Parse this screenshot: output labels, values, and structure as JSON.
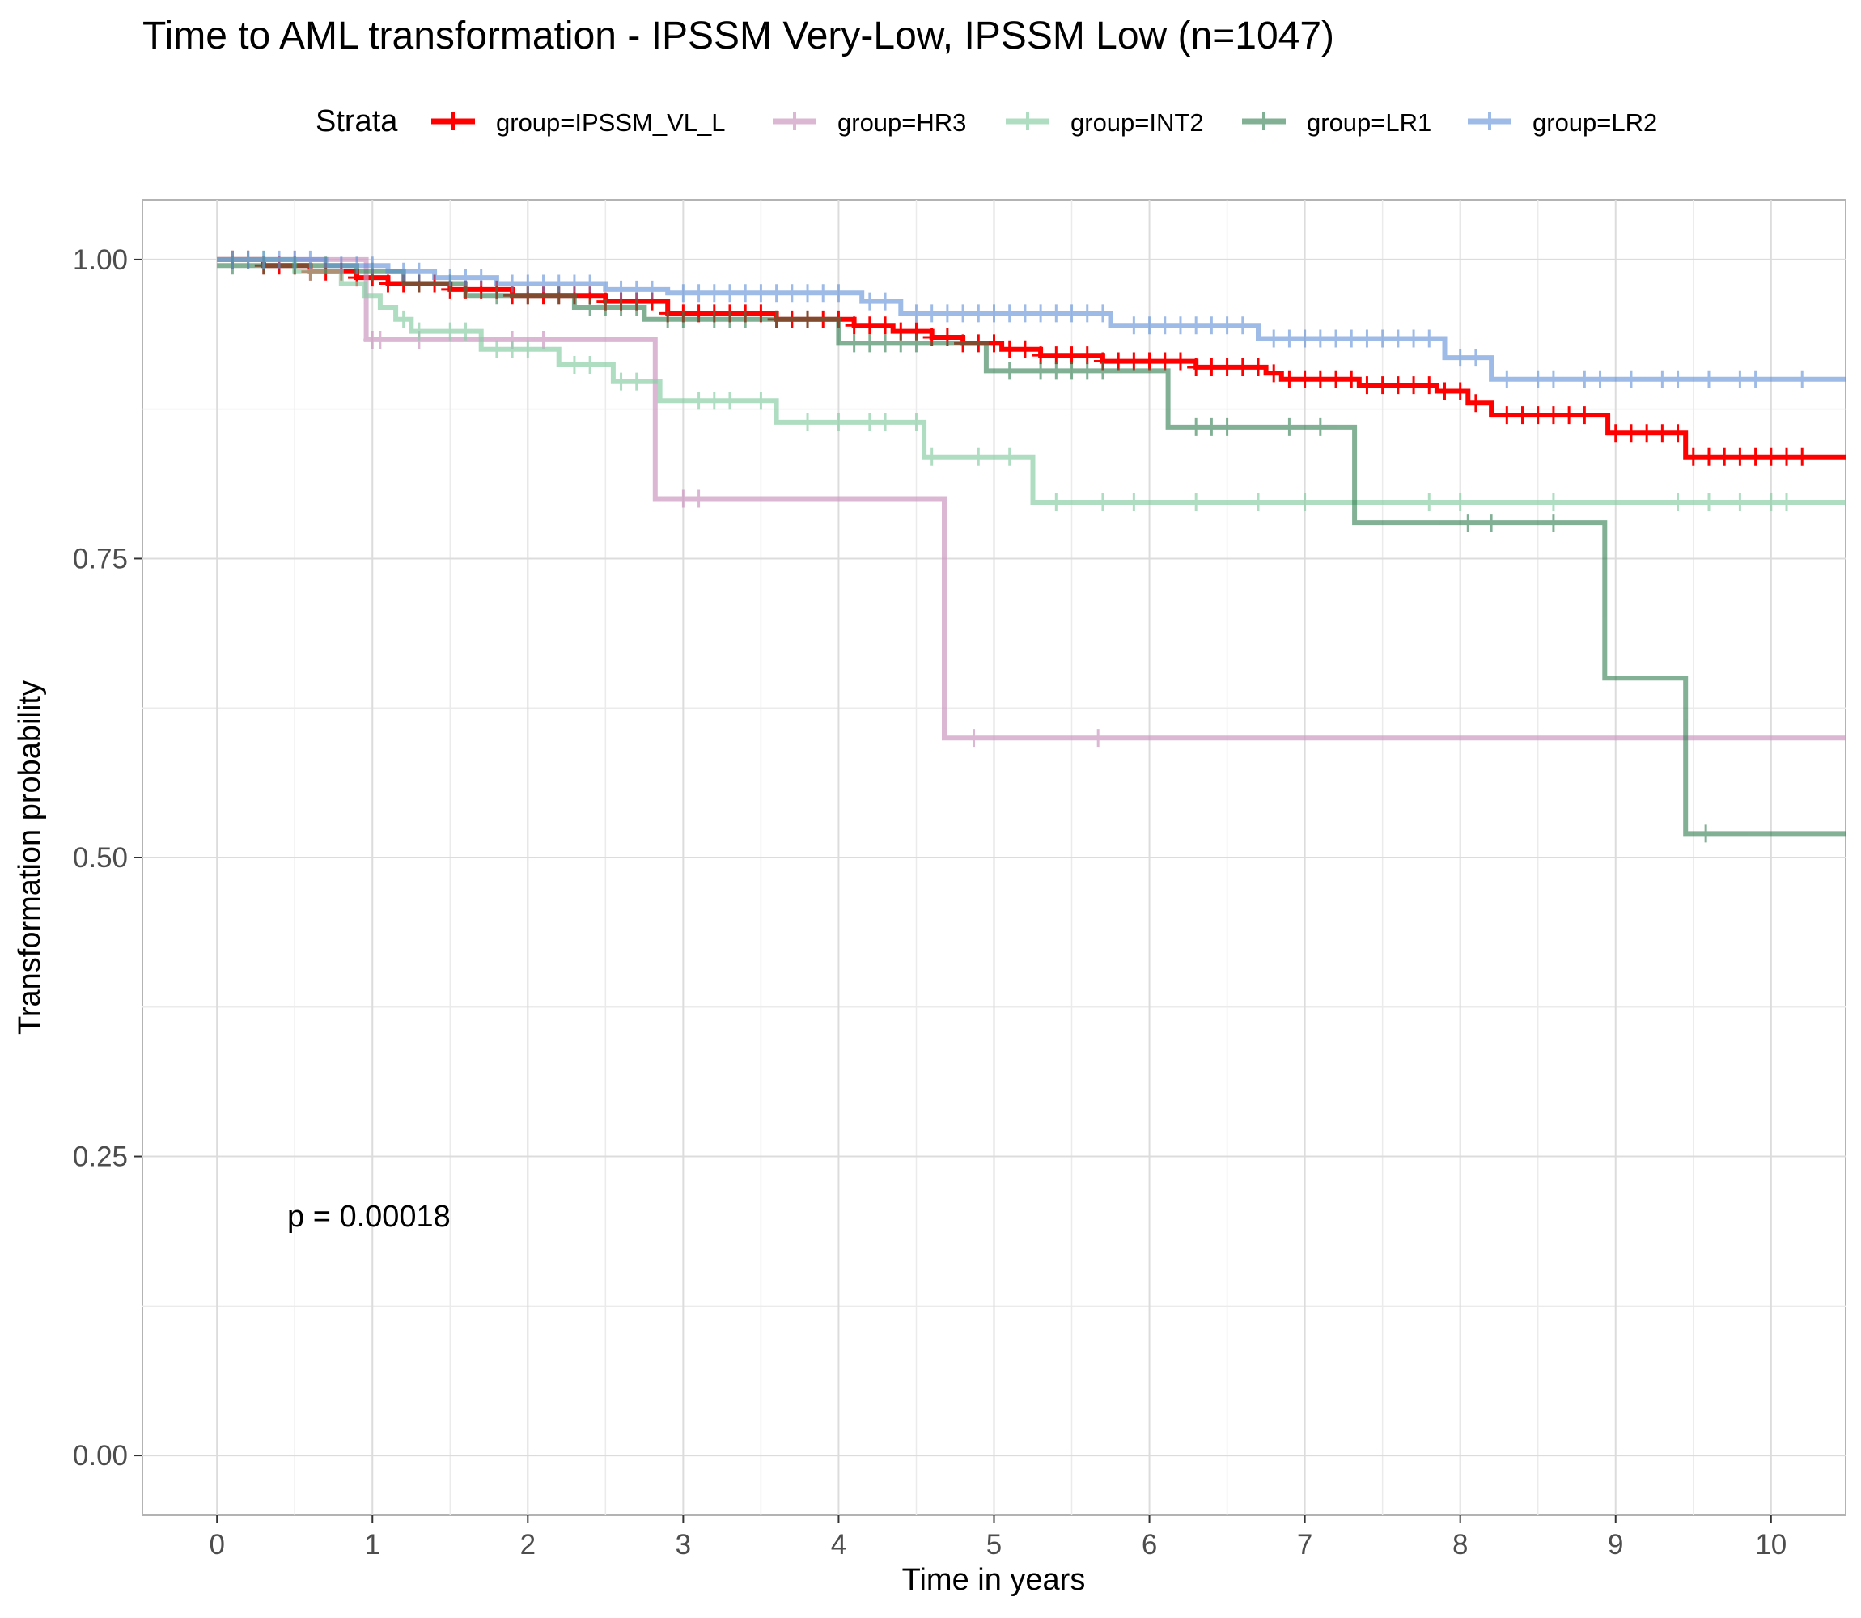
{
  "chart_data": {
    "type": "line",
    "title": "Time to AML transformation - IPSSM Very-Low, IPSSM Low (n=1047)",
    "xlabel": "Time in years",
    "ylabel": "Transformation probability",
    "xlim": [
      -0.48,
      10.48
    ],
    "ylim": [
      -0.05,
      1.05
    ],
    "x_ticks": [
      0,
      1,
      2,
      3,
      4,
      5,
      6,
      7,
      8,
      9,
      10
    ],
    "y_ticks": [
      0.0,
      0.25,
      0.5,
      0.75,
      1.0
    ],
    "y_tick_labels": [
      "0.00",
      "0.25",
      "0.50",
      "0.75",
      "1.00"
    ],
    "grid": true,
    "legend": {
      "title": "Strata",
      "position": "top"
    },
    "annotation": "p = 0.00018",
    "series": [
      {
        "name": "group=IPSSM_VL_L",
        "color": "#ff0000",
        "opacity": 1.0,
        "steps": [
          [
            0,
            1.0
          ],
          [
            0.3,
            0.995
          ],
          [
            0.6,
            0.99
          ],
          [
            0.9,
            0.985
          ],
          [
            1.1,
            0.98
          ],
          [
            1.5,
            0.975
          ],
          [
            1.9,
            0.97
          ],
          [
            2.5,
            0.965
          ],
          [
            2.9,
            0.955
          ],
          [
            3.6,
            0.95
          ],
          [
            4.1,
            0.945
          ],
          [
            4.35,
            0.94
          ],
          [
            4.6,
            0.935
          ],
          [
            4.8,
            0.93
          ],
          [
            5.05,
            0.925
          ],
          [
            5.3,
            0.92
          ],
          [
            5.7,
            0.915
          ],
          [
            6.3,
            0.91
          ],
          [
            6.75,
            0.905
          ],
          [
            6.85,
            0.9
          ],
          [
            7.35,
            0.895
          ],
          [
            7.85,
            0.89
          ],
          [
            8.05,
            0.88
          ],
          [
            8.2,
            0.87
          ],
          [
            8.95,
            0.855
          ],
          [
            9.45,
            0.835
          ]
        ],
        "end_x": 10.48,
        "censor": [
          0.1,
          0.2,
          0.3,
          0.4,
          0.5,
          0.6,
          0.7,
          0.8,
          0.9,
          1.0,
          1.1,
          1.2,
          1.3,
          1.4,
          1.5,
          1.6,
          1.7,
          1.8,
          1.9,
          2.0,
          2.1,
          2.2,
          2.3,
          2.4,
          2.5,
          2.6,
          2.7,
          2.8,
          2.9,
          3.0,
          3.1,
          3.2,
          3.3,
          3.4,
          3.5,
          3.6,
          3.7,
          3.8,
          3.9,
          4.0,
          4.1,
          4.2,
          4.3,
          4.4,
          4.5,
          4.6,
          4.7,
          4.8,
          4.9,
          5.0,
          5.1,
          5.2,
          5.3,
          5.4,
          5.5,
          5.6,
          5.7,
          5.8,
          5.9,
          6.0,
          6.1,
          6.2,
          6.3,
          6.4,
          6.5,
          6.6,
          6.7,
          6.8,
          6.9,
          7.0,
          7.1,
          7.2,
          7.3,
          7.4,
          7.5,
          7.6,
          7.7,
          7.8,
          7.9,
          8.0,
          8.1,
          8.3,
          8.4,
          8.5,
          8.6,
          8.7,
          8.8,
          9.0,
          9.1,
          9.2,
          9.3,
          9.4,
          9.5,
          9.6,
          9.7,
          9.8,
          9.9,
          10.0,
          10.1,
          10.2
        ]
      },
      {
        "name": "group=HR3",
        "color": "#cc99c2",
        "opacity": 0.7,
        "steps": [
          [
            0,
            1.0
          ],
          [
            0.96,
            0.933
          ],
          [
            2.82,
            0.8
          ],
          [
            4.68,
            0.6
          ]
        ],
        "end_x": 10.48,
        "censor": [
          0.2,
          0.5,
          1.0,
          1.05,
          1.3,
          1.9,
          2.1,
          3.0,
          3.1,
          4.87,
          5.67
        ]
      },
      {
        "name": "group=INT2",
        "color": "#8ecfa8",
        "opacity": 0.7,
        "steps": [
          [
            0,
            1.0
          ],
          [
            0.5,
            0.99
          ],
          [
            0.8,
            0.98
          ],
          [
            0.95,
            0.97
          ],
          [
            1.05,
            0.96
          ],
          [
            1.15,
            0.95
          ],
          [
            1.25,
            0.94
          ],
          [
            1.7,
            0.925
          ],
          [
            2.2,
            0.912
          ],
          [
            2.55,
            0.898
          ],
          [
            2.85,
            0.882
          ],
          [
            3.6,
            0.864
          ],
          [
            4.55,
            0.835
          ],
          [
            5.25,
            0.797
          ]
        ],
        "end_x": 10.48,
        "censor": [
          0.1,
          0.2,
          0.3,
          0.6,
          1.2,
          1.3,
          1.5,
          1.6,
          1.8,
          1.9,
          2.0,
          2.3,
          2.4,
          2.6,
          2.7,
          3.1,
          3.2,
          3.3,
          3.5,
          3.8,
          4.0,
          4.2,
          4.3,
          4.5,
          4.6,
          4.9,
          5.1,
          5.4,
          5.7,
          5.9,
          6.3,
          6.7,
          7.0,
          7.8,
          8.0,
          8.6,
          9.4,
          9.6,
          9.8,
          10.0,
          10.1
        ]
      },
      {
        "name": "group=LR1",
        "color": "#2e7d4f",
        "opacity": 0.6,
        "steps": [
          [
            0,
            0.995
          ],
          [
            0.9,
            0.99
          ],
          [
            1.2,
            0.98
          ],
          [
            1.6,
            0.97
          ],
          [
            2.3,
            0.96
          ],
          [
            2.75,
            0.95
          ],
          [
            4.0,
            0.93
          ],
          [
            4.95,
            0.907
          ],
          [
            6.12,
            0.86
          ],
          [
            7.32,
            0.78
          ],
          [
            8.93,
            0.65
          ],
          [
            9.45,
            0.52
          ]
        ],
        "end_x": 10.48,
        "censor": [
          0.1,
          0.3,
          0.5,
          0.7,
          1.0,
          1.3,
          1.5,
          1.8,
          2.0,
          2.2,
          2.4,
          2.5,
          2.6,
          2.7,
          2.9,
          3.0,
          3.2,
          3.3,
          3.4,
          3.6,
          3.8,
          4.1,
          4.2,
          4.3,
          4.4,
          4.5,
          5.1,
          5.3,
          5.4,
          5.5,
          5.6,
          5.7,
          6.3,
          6.4,
          6.5,
          6.9,
          7.1,
          8.05,
          8.2,
          8.6,
          9.58
        ]
      },
      {
        "name": "group=LR2",
        "color": "#5e8fd8",
        "opacity": 0.6,
        "steps": [
          [
            0,
            1.0
          ],
          [
            0.7,
            0.995
          ],
          [
            1.1,
            0.99
          ],
          [
            1.4,
            0.985
          ],
          [
            1.8,
            0.98
          ],
          [
            2.5,
            0.975
          ],
          [
            2.9,
            0.972
          ],
          [
            4.15,
            0.965
          ],
          [
            4.4,
            0.955
          ],
          [
            5.75,
            0.945
          ],
          [
            6.7,
            0.934
          ],
          [
            7.9,
            0.918
          ],
          [
            8.2,
            0.9
          ]
        ],
        "end_x": 10.48,
        "censor": [
          0.1,
          0.2,
          0.3,
          0.4,
          0.5,
          0.6,
          0.8,
          0.9,
          1.0,
          1.2,
          1.3,
          1.5,
          1.6,
          1.7,
          1.9,
          2.0,
          2.1,
          2.2,
          2.3,
          2.4,
          2.6,
          2.7,
          2.8,
          3.0,
          3.1,
          3.2,
          3.3,
          3.4,
          3.5,
          3.6,
          3.7,
          3.8,
          3.9,
          4.0,
          4.2,
          4.3,
          4.5,
          4.6,
          4.7,
          4.8,
          4.9,
          5.0,
          5.1,
          5.2,
          5.3,
          5.4,
          5.5,
          5.6,
          5.7,
          5.9,
          6.0,
          6.1,
          6.2,
          6.3,
          6.4,
          6.5,
          6.6,
          6.8,
          6.9,
          7.0,
          7.1,
          7.2,
          7.3,
          7.4,
          7.5,
          7.6,
          7.7,
          7.8,
          8.0,
          8.1,
          8.3,
          8.5,
          8.6,
          8.8,
          8.9,
          9.1,
          9.3,
          9.4,
          9.6,
          9.8,
          9.9,
          10.2
        ]
      }
    ]
  }
}
